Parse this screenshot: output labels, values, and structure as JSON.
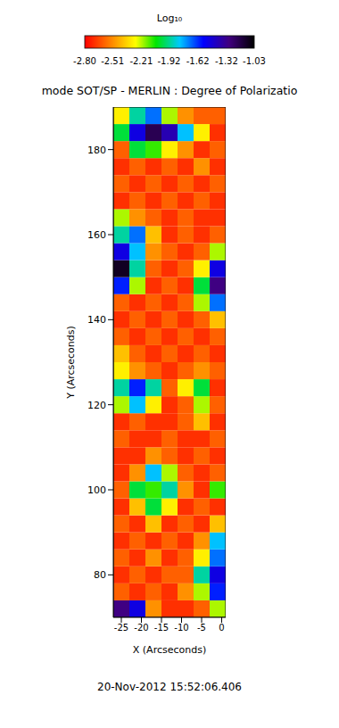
{
  "chart_data": {
    "type": "heatmap",
    "title": "mode SOT/SP - MERLIN : Degree of Polarizatio",
    "x_label": "X (Arcseconds)",
    "y_label": "Y (Arcseconds)",
    "xlim": [
      -27,
      1
    ],
    "ylim": [
      70,
      190
    ],
    "xticks": [
      -25,
      -20,
      -15,
      -10,
      -5,
      0
    ],
    "yticks": [
      80,
      100,
      120,
      140,
      160,
      180
    ],
    "x_edges": [
      -27,
      -23,
      -19,
      -15,
      -11,
      -7,
      -3,
      1
    ],
    "y_edges": [
      70,
      74,
      78,
      82,
      86,
      90,
      94,
      98,
      102,
      106,
      110,
      114,
      118,
      122,
      126,
      130,
      134,
      138,
      142,
      146,
      150,
      154,
      158,
      162,
      166,
      170,
      174,
      178,
      182,
      186,
      190
    ],
    "cells": [
      [
        -1.3,
        -1.5,
        -2.5,
        -2.7,
        -2.7,
        -2.6,
        -2.2
      ],
      [
        -2.6,
        -2.7,
        -2.6,
        -2.7,
        -2.5,
        -2.2,
        -1.6
      ],
      [
        -2.7,
        -2.6,
        -2.7,
        -2.6,
        -2.6,
        -1.9,
        -1.5
      ],
      [
        -2.6,
        -2.7,
        -2.5,
        -2.7,
        -2.6,
        -2.3,
        -1.7
      ],
      [
        -2.7,
        -2.6,
        -2.7,
        -2.6,
        -2.7,
        -2.5,
        -1.8
      ],
      [
        -2.6,
        -2.7,
        -2.4,
        -2.7,
        -2.6,
        -2.7,
        -2.4
      ],
      [
        -2.7,
        -2.4,
        -2.0,
        -2.3,
        -2.7,
        -2.6,
        -2.7
      ],
      [
        -2.6,
        -2.0,
        -2.1,
        -1.9,
        -2.5,
        -2.7,
        -2.1
      ],
      [
        -2.7,
        -2.5,
        -1.8,
        -2.2,
        -2.6,
        -2.7,
        -2.6
      ],
      [
        -2.7,
        -2.7,
        -2.5,
        -2.6,
        -2.7,
        -2.6,
        -2.7
      ],
      [
        -2.6,
        -2.7,
        -2.7,
        -2.6,
        -2.7,
        -2.7,
        -2.6
      ],
      [
        -2.7,
        -2.6,
        -2.7,
        -2.7,
        -2.6,
        -2.4,
        -2.7
      ],
      [
        -2.2,
        -1.8,
        -2.3,
        -2.7,
        -2.6,
        -2.2,
        -2.6
      ],
      [
        -1.9,
        -1.6,
        -1.9,
        -2.6,
        -2.3,
        -2.0,
        -2.7
      ],
      [
        -2.3,
        -2.5,
        -2.6,
        -2.7,
        -2.6,
        -2.5,
        -2.6
      ],
      [
        -2.4,
        -2.6,
        -2.7,
        -2.6,
        -2.7,
        -2.6,
        -2.7
      ],
      [
        -2.6,
        -2.7,
        -2.6,
        -2.7,
        -2.6,
        -2.7,
        -2.6
      ],
      [
        -2.7,
        -2.6,
        -2.7,
        -2.6,
        -2.7,
        -2.6,
        -2.4
      ],
      [
        -2.6,
        -2.7,
        -2.6,
        -2.7,
        -2.6,
        -2.2,
        -1.7
      ],
      [
        -1.6,
        -2.2,
        -2.7,
        -2.6,
        -2.7,
        -2.0,
        -1.3
      ],
      [
        -1.1,
        -1.9,
        -2.6,
        -2.7,
        -2.6,
        -2.3,
        -1.5
      ],
      [
        -1.5,
        -1.8,
        -2.5,
        -2.6,
        -2.7,
        -2.6,
        -2.2
      ],
      [
        -1.9,
        -1.7,
        -2.4,
        -2.7,
        -2.6,
        -2.7,
        -2.6
      ],
      [
        -2.2,
        -2.5,
        -2.6,
        -2.7,
        -2.6,
        -2.7,
        -2.7
      ],
      [
        -2.7,
        -2.6,
        -2.7,
        -2.6,
        -2.7,
        -2.6,
        -2.7
      ],
      [
        -2.6,
        -2.7,
        -2.6,
        -2.7,
        -2.6,
        -2.7,
        -2.6
      ],
      [
        -2.7,
        -2.6,
        -2.7,
        -2.6,
        -2.7,
        -2.5,
        -2.7
      ],
      [
        -2.6,
        -2.0,
        -2.1,
        -2.3,
        -2.5,
        -2.7,
        -2.6
      ],
      [
        -2.0,
        -1.5,
        -1.2,
        -1.4,
        -1.8,
        -2.3,
        -2.7
      ],
      [
        -2.3,
        -1.9,
        -1.7,
        -2.2,
        -2.5,
        -2.6,
        -2.6
      ]
    ],
    "colorbar": {
      "label": "Log₁₀",
      "range": [
        -2.8,
        -1.03
      ],
      "ticks": [
        {
          "value": -2.8,
          "label": "-2.80"
        },
        {
          "value": -2.51,
          "label": "-2.51"
        },
        {
          "value": -2.21,
          "label": "-2.21"
        },
        {
          "value": -1.92,
          "label": "-1.92"
        },
        {
          "value": -1.62,
          "label": "-1.62"
        },
        {
          "value": -1.32,
          "label": "-1.32"
        },
        {
          "value": -1.03,
          "label": "-1.03"
        }
      ]
    },
    "footer": "20-Nov-2012 15:52:06.406"
  }
}
